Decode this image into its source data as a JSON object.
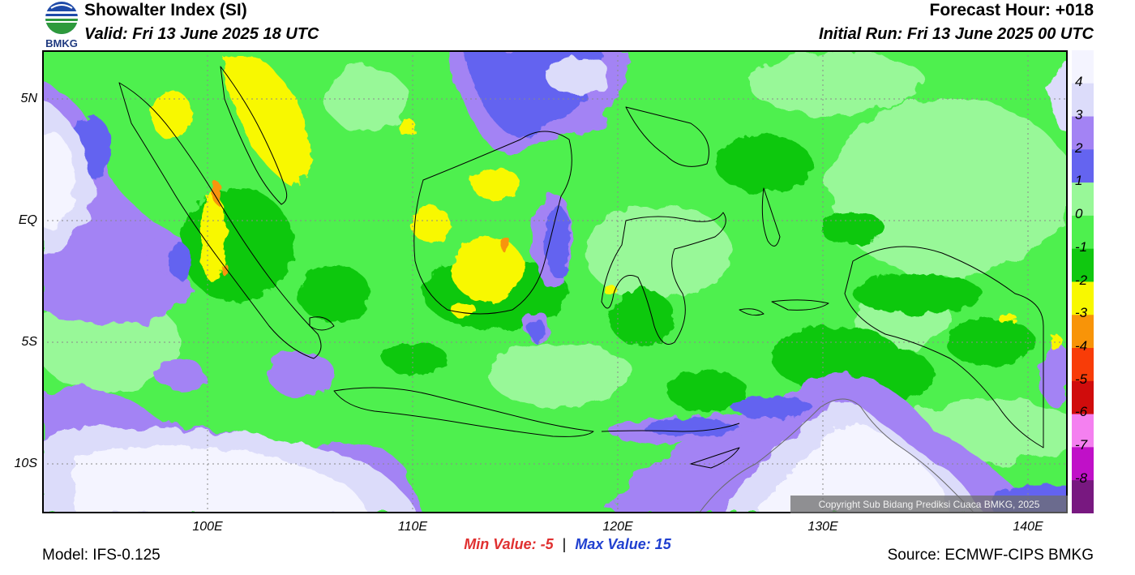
{
  "header": {
    "title": "Showalter Index (SI)",
    "valid": "Valid: Fri 13 June 2025 18 UTC",
    "forecast_hour": "Forecast Hour: +018",
    "initial_run": "Initial Run: Fri 13 June 2025 00 UTC",
    "logo_text": "BMKG"
  },
  "axes": {
    "lat_labels": [
      "5N",
      "EQ",
      "5S",
      "10S"
    ],
    "lon_labels": [
      "100E",
      "110E",
      "120E",
      "130E",
      "140E"
    ],
    "lat_range": [
      -12,
      7
    ],
    "lon_range": [
      92,
      142
    ]
  },
  "legend": {
    "labels": [
      "4",
      "3",
      "2",
      "1",
      "0",
      "-1",
      "-2",
      "-3",
      "-4",
      "-5",
      "-6",
      "-7",
      "-8"
    ],
    "colors": [
      "#f4f4ff",
      "#dcdcfa",
      "#a383f4",
      "#6464f0",
      "#98f898",
      "#4ef04e",
      "#10c810",
      "#f8f800",
      "#f89408",
      "#f83c08",
      "#d00c0c",
      "#f480f0",
      "#c010c8",
      "#781880"
    ]
  },
  "colors": {
    "pale": "#dcdcfa",
    "lavender": "#a383f4",
    "blue": "#6464f0",
    "lightgreen": "#98f898",
    "green": "#4ef04e",
    "darkgreen": "#10c810",
    "yellow": "#f8f800",
    "orange": "#f89408",
    "white": "#f4f4ff"
  },
  "stats": {
    "min_label": "Min Value:",
    "min_value": "-5",
    "max_label": "Max Value:",
    "max_value": "15"
  },
  "footer": {
    "model": "Model: IFS-0.125",
    "source": "Source: ECMWF-CIPS BMKG",
    "copyright": "Copyright Sub Bidang Prediksi Cuaca BMKG, 2025"
  }
}
